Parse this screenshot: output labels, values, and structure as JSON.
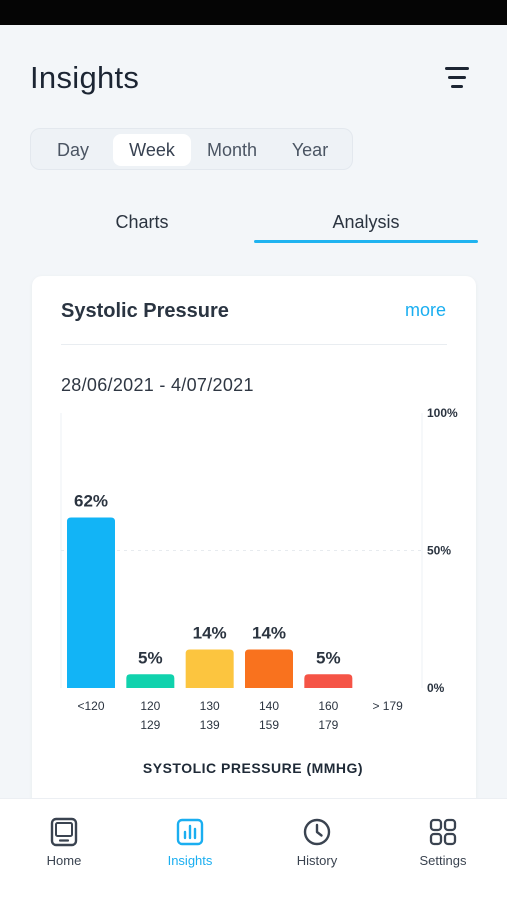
{
  "header": {
    "title": "Insights"
  },
  "period_tabs": [
    {
      "label": "Day",
      "active": false
    },
    {
      "label": "Week",
      "active": true
    },
    {
      "label": "Month",
      "active": false
    },
    {
      "label": "Year",
      "active": false
    }
  ],
  "view_tabs": [
    {
      "label": "Charts",
      "active": false
    },
    {
      "label": "Analysis",
      "active": true
    }
  ],
  "card": {
    "title": "Systolic Pressure",
    "more_label": "more",
    "date_range": "28/06/2021 - 4/07/2021"
  },
  "chart_data": {
    "type": "bar",
    "categories": [
      "<120",
      "120\n129",
      "130\n139",
      "140\n159",
      "160\n179",
      "> 179"
    ],
    "values": [
      62,
      5,
      14,
      14,
      5,
      0
    ],
    "data_labels": [
      "62%",
      "5%",
      "14%",
      "14%",
      "5%",
      ""
    ],
    "colors": [
      "#12b4f6",
      "#10d2ad",
      "#fcc53f",
      "#f9721e",
      "#f55446",
      "#cccccc"
    ],
    "y_ticks": [
      "100%",
      "50%",
      "0%"
    ],
    "ylim": [
      0,
      100
    ],
    "xlabel": "SYSTOLIC PRESSURE (MMHG)",
    "ylabel": "",
    "grid": "dashed at 50%",
    "y_axis_side": "right"
  },
  "bottom_nav": [
    {
      "label": "Home",
      "icon": "tablet-icon",
      "active": false
    },
    {
      "label": "Insights",
      "icon": "bar-chart-icon",
      "active": true
    },
    {
      "label": "History",
      "icon": "clock-icon",
      "active": false
    },
    {
      "label": "Settings",
      "icon": "grid-icon",
      "active": false
    }
  ],
  "colors": {
    "accent": "#1aaef0",
    "text": "#1f2a37",
    "background": "#f3f6f9"
  }
}
